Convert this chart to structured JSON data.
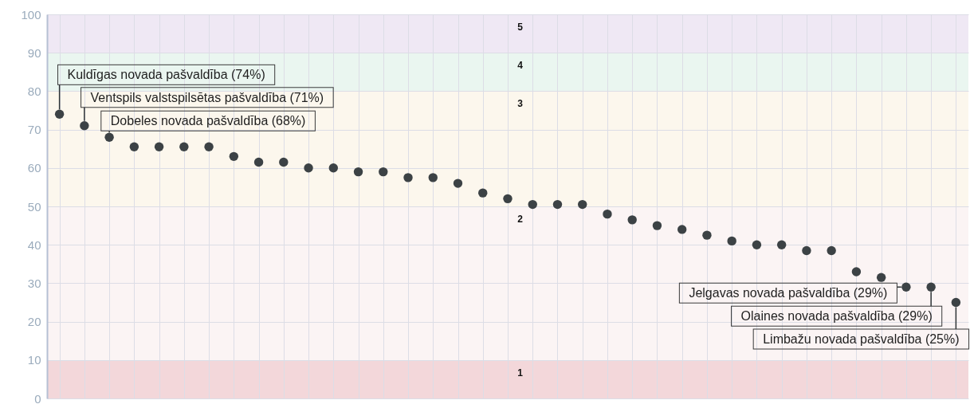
{
  "chart_data": {
    "type": "scatter",
    "categories": [
      null,
      null,
      null,
      null,
      null,
      null,
      null,
      null,
      null,
      null,
      null,
      null,
      null,
      null,
      null,
      null,
      null,
      null,
      null,
      null,
      null,
      null,
      null,
      null,
      null,
      null,
      null,
      null,
      null,
      null,
      null,
      null,
      null,
      null,
      null,
      null,
      null
    ],
    "values": [
      74,
      71,
      68,
      65.5,
      65.5,
      65.5,
      65.5,
      63,
      61.5,
      61.5,
      60,
      60,
      59,
      59,
      57.5,
      57.5,
      56,
      53.5,
      52,
      50.5,
      50.5,
      50.5,
      48,
      46.5,
      45,
      44,
      42.5,
      41,
      40,
      40,
      38.5,
      38.5,
      33,
      31.5,
      29,
      29,
      25
    ],
    "value_labels": [
      "Kuldīgas novada pašvaldība (74%)",
      "Ventspils valstspilsētas pašvaldība (71%)",
      "Dobeles novada pašvaldība (68%)",
      null,
      null,
      null,
      null,
      null,
      null,
      null,
      null,
      null,
      null,
      null,
      null,
      null,
      null,
      null,
      null,
      null,
      null,
      null,
      null,
      null,
      null,
      null,
      null,
      null,
      null,
      null,
      null,
      null,
      null,
      null,
      "Jelgavas novada pašvaldība (29%)",
      "Olaines novada pašvaldība (29%)",
      "Limbažu novada pašvaldība (25%)"
    ],
    "color": "#3c4245",
    "marker": "circle",
    "ylim": [
      0,
      100
    ],
    "yticks": [
      0,
      10,
      20,
      30,
      40,
      50,
      60,
      70,
      80,
      90,
      100
    ],
    "grid": true,
    "tick_labels": "y",
    "bands": [
      {
        "axis": "y",
        "from": 0,
        "to": 10,
        "label": "1",
        "color": "#f3d7da"
      },
      {
        "axis": "y",
        "from": 10,
        "to": 50,
        "label": "2",
        "color": "#fbf4f4"
      },
      {
        "axis": "y",
        "from": 50,
        "to": 80,
        "label": "3",
        "color": "#fcf7ed"
      },
      {
        "axis": "y",
        "from": 80,
        "to": 90,
        "label": "4",
        "color": "#eaf6f0"
      },
      {
        "axis": "y",
        "from": 90,
        "to": 100,
        "label": "5",
        "color": "#efe8f4"
      }
    ]
  }
}
